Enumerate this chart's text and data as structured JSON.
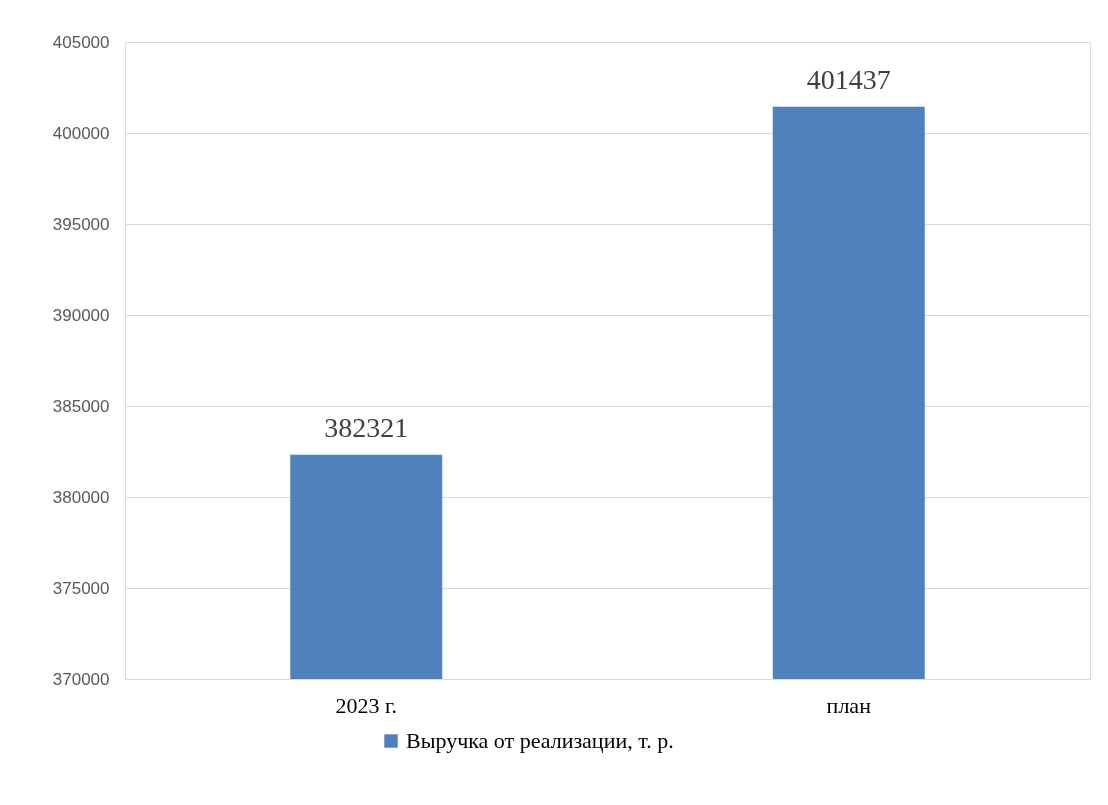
{
  "chart_data": {
    "type": "bar",
    "categories": [
      "2023 г.",
      "план"
    ],
    "series": [
      {
        "name": "Выручка от реализации, т. р.",
        "color": "#4f81bd",
        "values": [
          382321,
          401437
        ]
      }
    ],
    "ylim": [
      370000,
      405000
    ],
    "yticks": [
      370000,
      375000,
      380000,
      385000,
      390000,
      395000,
      400000,
      405000
    ],
    "grid": "y",
    "legend": "bottom",
    "data_labels": true
  }
}
